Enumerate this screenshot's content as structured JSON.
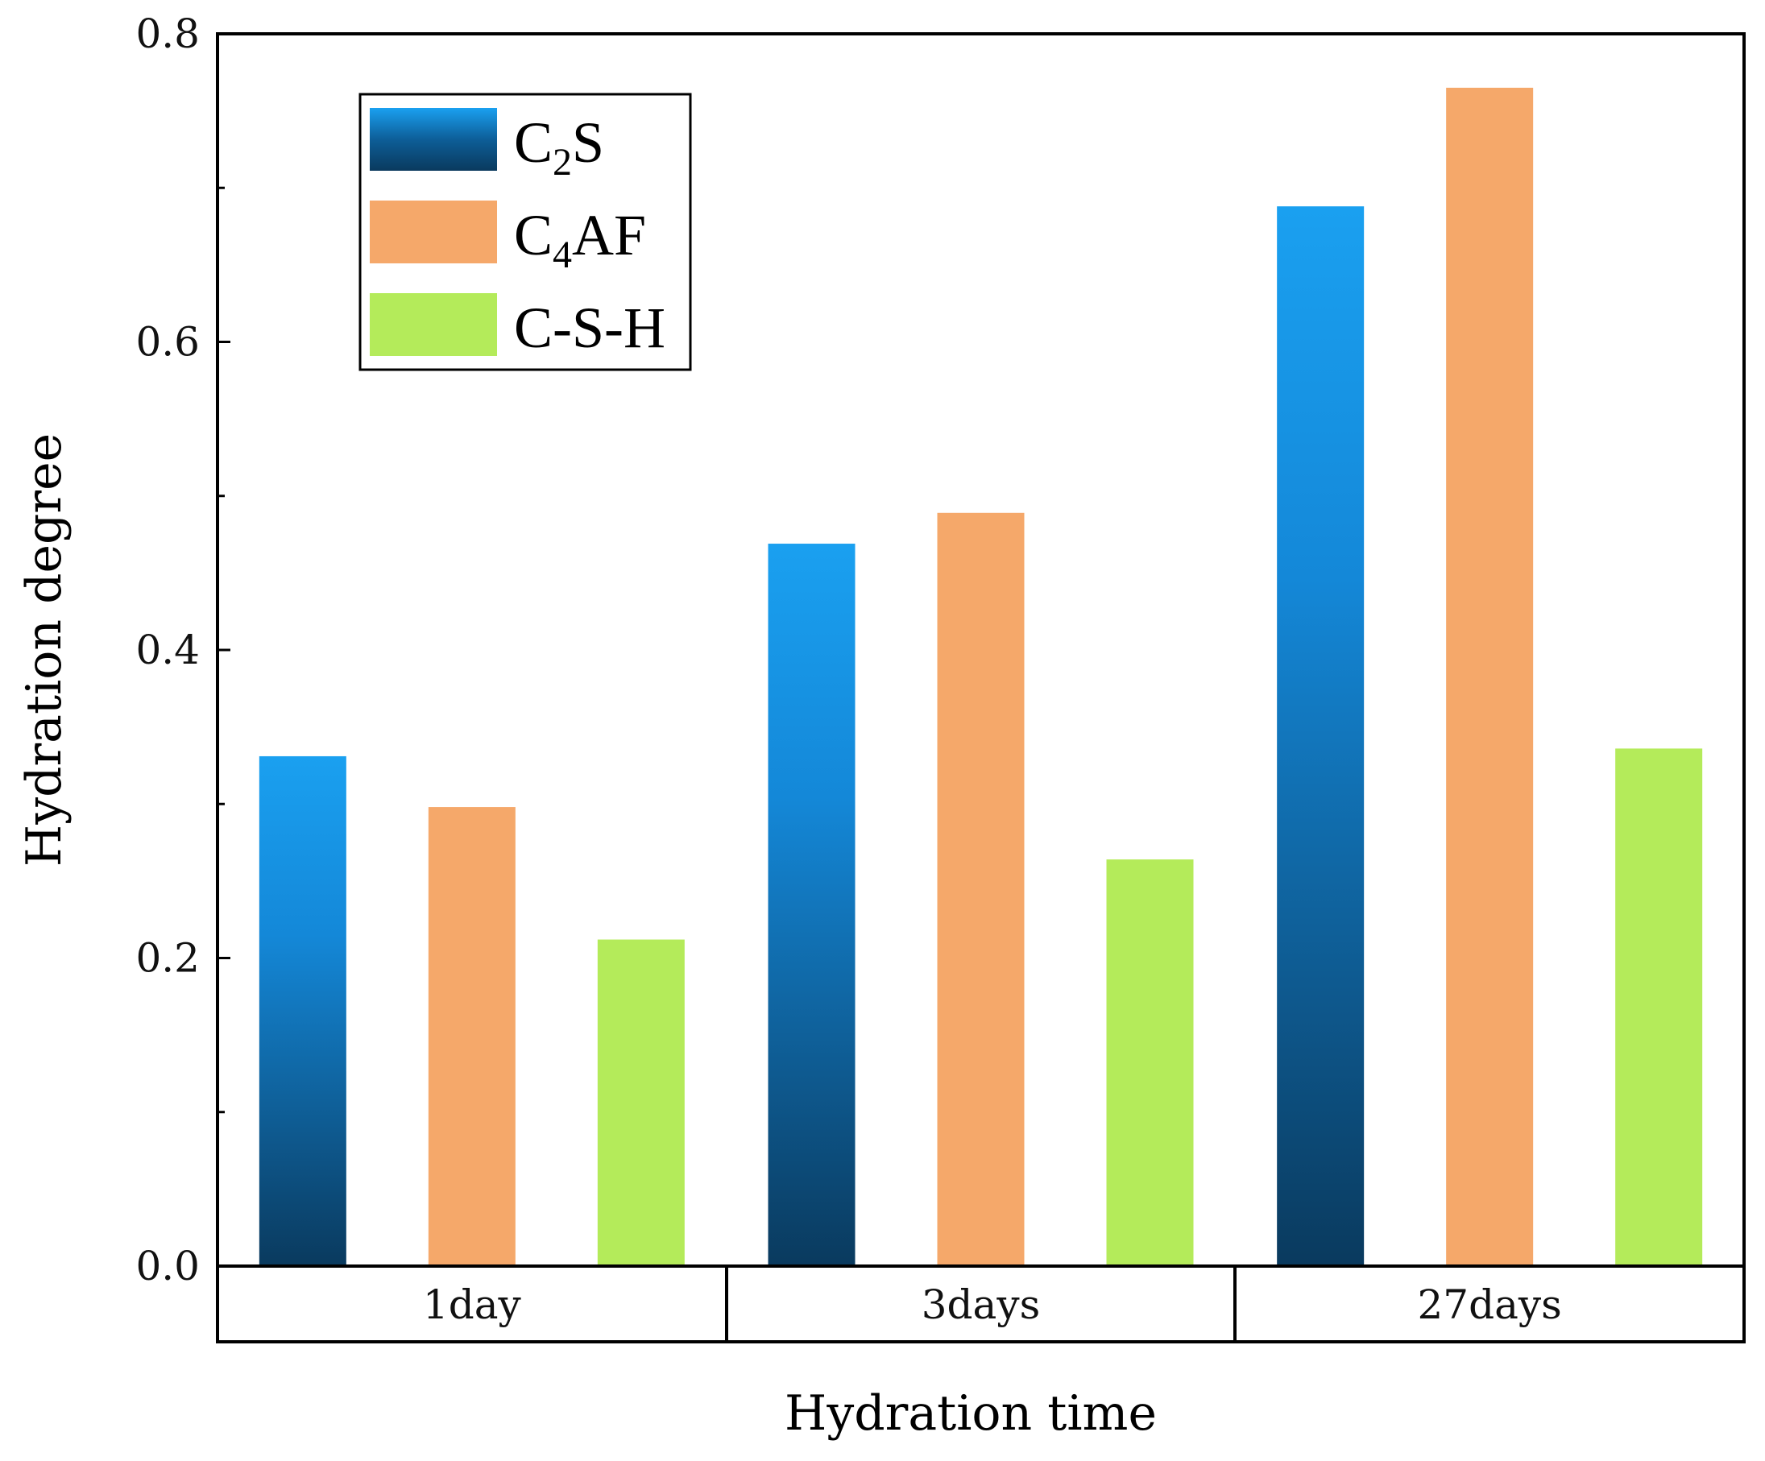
{
  "chart_data": {
    "type": "bar",
    "categories": [
      "1day",
      "3days",
      "27days"
    ],
    "series": [
      {
        "name": "C2S",
        "label_main": "C",
        "label_sub": "2",
        "label_rest": "S",
        "values": [
          0.331,
          0.469,
          0.688
        ],
        "color_top": "#1aa0f0",
        "color_bottom": "#0a3a5e"
      },
      {
        "name": "C4AF",
        "label_main": "C",
        "label_sub": "4",
        "label_rest": "AF",
        "values": [
          0.298,
          0.489,
          0.765
        ],
        "color": "#f5a86a"
      },
      {
        "name": "C-S-H",
        "label_main": "C-S-H",
        "label_sub": "",
        "label_rest": "",
        "values": [
          0.212,
          0.264,
          0.336
        ],
        "color": "#b4eb5a"
      }
    ],
    "xlabel": "Hydration time",
    "ylabel": "Hydration degree",
    "ylim": [
      0,
      0.8
    ],
    "yticks": [
      "0.0",
      "0.2",
      "0.4",
      "0.6",
      "0.8"
    ],
    "legend_position": "top-left"
  }
}
